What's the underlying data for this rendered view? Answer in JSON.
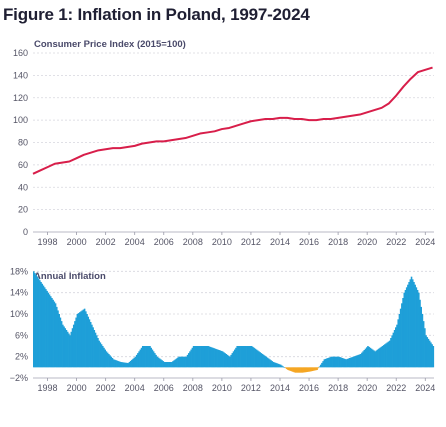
{
  "title": "Figure 1: Inflation in Poland, 1997-2024",
  "colors": {
    "cpi_line": "#d81e4a",
    "positive_bar": "#1e9fd8",
    "negative_bar": "#f5a623",
    "text": "#1f1f33"
  },
  "chart_data": [
    {
      "type": "line",
      "title": "Consumer Price Index (2015=100)",
      "xlabel": "",
      "ylabel": "",
      "xlim": [
        1997,
        2024.6
      ],
      "ylim": [
        0,
        160
      ],
      "x_ticks": [
        "1998",
        "2000",
        "2002",
        "2004",
        "2006",
        "2008",
        "2010",
        "2012",
        "2014",
        "2016",
        "2018",
        "2020",
        "2022",
        "2024"
      ],
      "y_ticks": [
        "0",
        "20",
        "40",
        "60",
        "80",
        "100",
        "120",
        "140",
        "160"
      ],
      "grid": true,
      "series": [
        {
          "x": [
            1997.0,
            1997.5,
            1998.0,
            1998.5,
            1999.0,
            1999.5,
            2000.0,
            2000.5,
            2001.0,
            2001.5,
            2002.0,
            2002.5,
            2003.0,
            2003.5,
            2004.0,
            2004.5,
            2005.0,
            2005.5,
            2006.0,
            2006.5,
            2007.0,
            2007.5,
            2008.0,
            2008.5,
            2009.0,
            2009.5,
            2010.0,
            2010.5,
            2011.0,
            2011.5,
            2012.0,
            2012.5,
            2013.0,
            2013.5,
            2014.0,
            2014.5,
            2015.0,
            2015.5,
            2016.0,
            2016.5,
            2017.0,
            2017.5,
            2018.0,
            2018.5,
            2019.0,
            2019.5,
            2020.0,
            2020.5,
            2021.0,
            2021.5,
            2022.0,
            2022.5,
            2023.0,
            2023.5,
            2024.0,
            2024.5
          ],
          "values": [
            52,
            55,
            58,
            61,
            62,
            63,
            66,
            69,
            71,
            73,
            74,
            75,
            75,
            76,
            77,
            79,
            80,
            81,
            81,
            82,
            83,
            84,
            86,
            88,
            89,
            90,
            92,
            93,
            95,
            97,
            99,
            100,
            101,
            101,
            102,
            102,
            101,
            101,
            100,
            100,
            101,
            101,
            102,
            103,
            104,
            105,
            107,
            109,
            111,
            115,
            122,
            130,
            137,
            143,
            145,
            147
          ]
        }
      ]
    },
    {
      "type": "area",
      "title": "Annual Inflation",
      "xlabel": "",
      "ylabel": "",
      "xlim": [
        1997,
        2024.6
      ],
      "ylim": [
        -2,
        19
      ],
      "x_ticks": [
        "1998",
        "2000",
        "2002",
        "2004",
        "2006",
        "2008",
        "2010",
        "2012",
        "2014",
        "2016",
        "2018",
        "2020",
        "2022",
        "2024"
      ],
      "y_ticks": [
        "−2%",
        "2%",
        "6%",
        "10%",
        "14%",
        "18%"
      ],
      "grid": true,
      "series": [
        {
          "x": [
            1997.0,
            1997.5,
            1998.0,
            1998.5,
            1999.0,
            1999.5,
            2000.0,
            2000.5,
            2001.0,
            2001.5,
            2002.0,
            2002.5,
            2003.0,
            2003.5,
            2004.0,
            2004.5,
            2005.0,
            2005.5,
            2006.0,
            2006.5,
            2007.0,
            2007.5,
            2008.0,
            2008.5,
            2009.0,
            2009.5,
            2010.0,
            2010.5,
            2011.0,
            2011.5,
            2012.0,
            2012.5,
            2013.0,
            2013.5,
            2014.0,
            2014.5,
            2015.0,
            2015.5,
            2016.0,
            2016.5,
            2017.0,
            2017.5,
            2018.0,
            2018.5,
            2019.0,
            2019.5,
            2020.0,
            2020.5,
            2021.0,
            2021.5,
            2022.0,
            2022.5,
            2023.0,
            2023.5,
            2024.0,
            2024.5
          ],
          "values": [
            18,
            16,
            14,
            12,
            8,
            6,
            10,
            11,
            8,
            5,
            3,
            1.5,
            1,
            0.8,
            2,
            4,
            4,
            2,
            1,
            1,
            2,
            2,
            4,
            4,
            4,
            3.5,
            3,
            2,
            4,
            4,
            4,
            3,
            2,
            1,
            0.5,
            -0.5,
            -1,
            -1,
            -0.8,
            -0.5,
            1.5,
            2,
            2,
            1.5,
            2,
            2.5,
            4,
            3,
            4,
            5,
            8,
            14,
            17,
            14,
            6,
            4
          ]
        }
      ]
    }
  ]
}
